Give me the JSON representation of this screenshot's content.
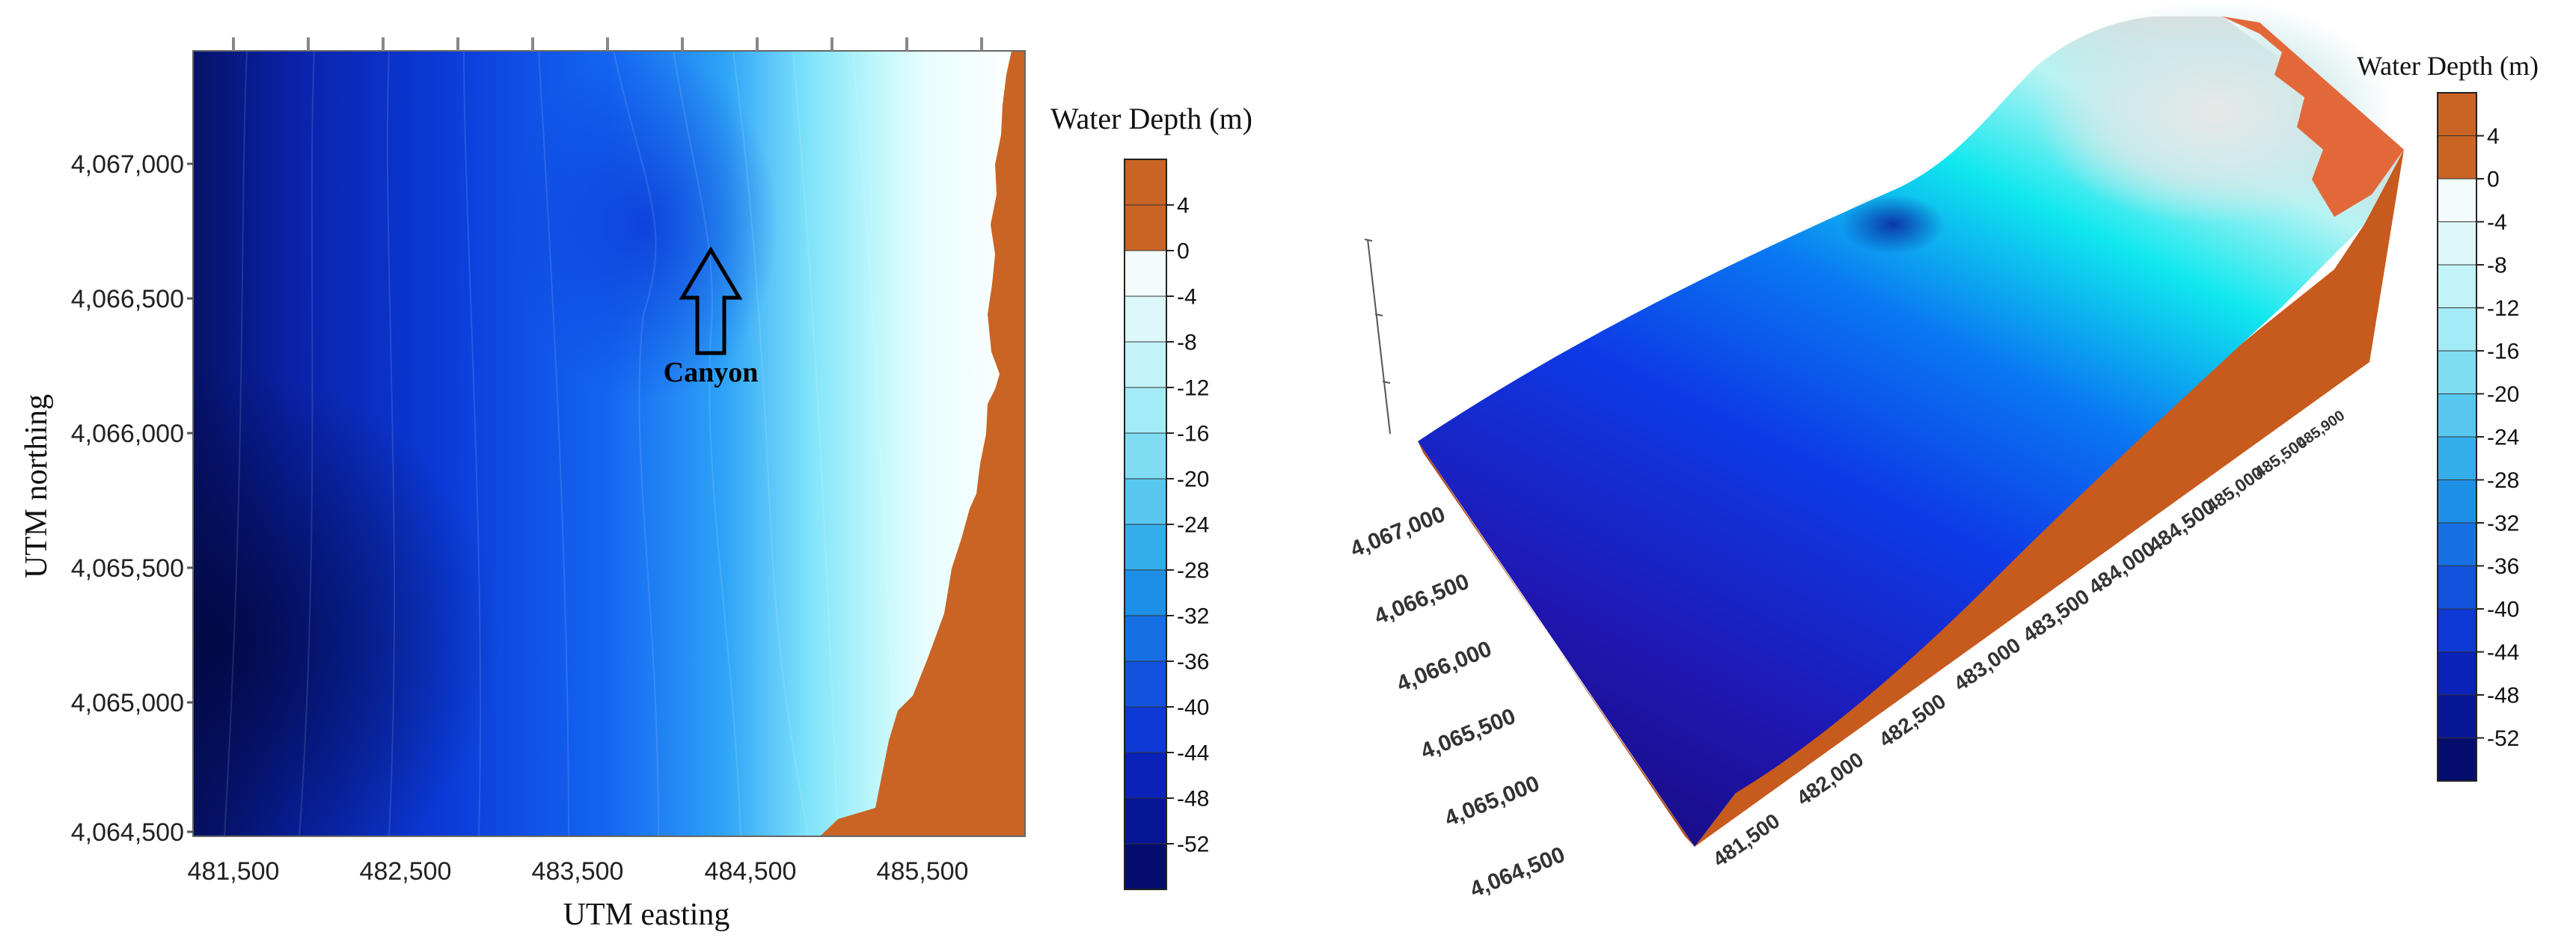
{
  "left_map": {
    "x_axis_label": "UTM easting",
    "y_axis_label": "UTM northing",
    "x_ticks": [
      "481,500",
      "482,500",
      "483,500",
      "484,500",
      "485,500"
    ],
    "y_ticks": [
      "4,067,000",
      "4,066,500",
      "4,066,000",
      "4,065,500",
      "4,065,000",
      "4,064,500"
    ],
    "annotation": "Canyon",
    "legend": {
      "title": "Water Depth (m)",
      "labels": [
        "4",
        "0",
        "-4",
        "-8",
        "-12",
        "-16",
        "-20",
        "-24",
        "-28",
        "-32",
        "-36",
        "-40",
        "-44",
        "-48",
        "-52"
      ]
    }
  },
  "right_map": {
    "y_ticks": [
      "4,067,000",
      "4,066,500",
      "4,066,000",
      "4,065,500",
      "4,065,000",
      "4,064,500"
    ],
    "x_ticks": [
      "481,500",
      "482,000",
      "482,500",
      "483,000",
      "483,500",
      "484,000",
      "484,500",
      "485,000",
      "485,500",
      "485,900"
    ],
    "legend": {
      "title": "Water Depth (m)",
      "labels": [
        "4",
        "0",
        "-4",
        "-8",
        "-12",
        "-16",
        "-20",
        "-24",
        "-28",
        "-32",
        "-36",
        "-40",
        "-44",
        "-48",
        "-52"
      ]
    }
  },
  "colors": {
    "land": "#c96424",
    "deep": "#050a5e",
    "mid": "#0a4ef0",
    "shallow": "#9ff3f8"
  }
}
